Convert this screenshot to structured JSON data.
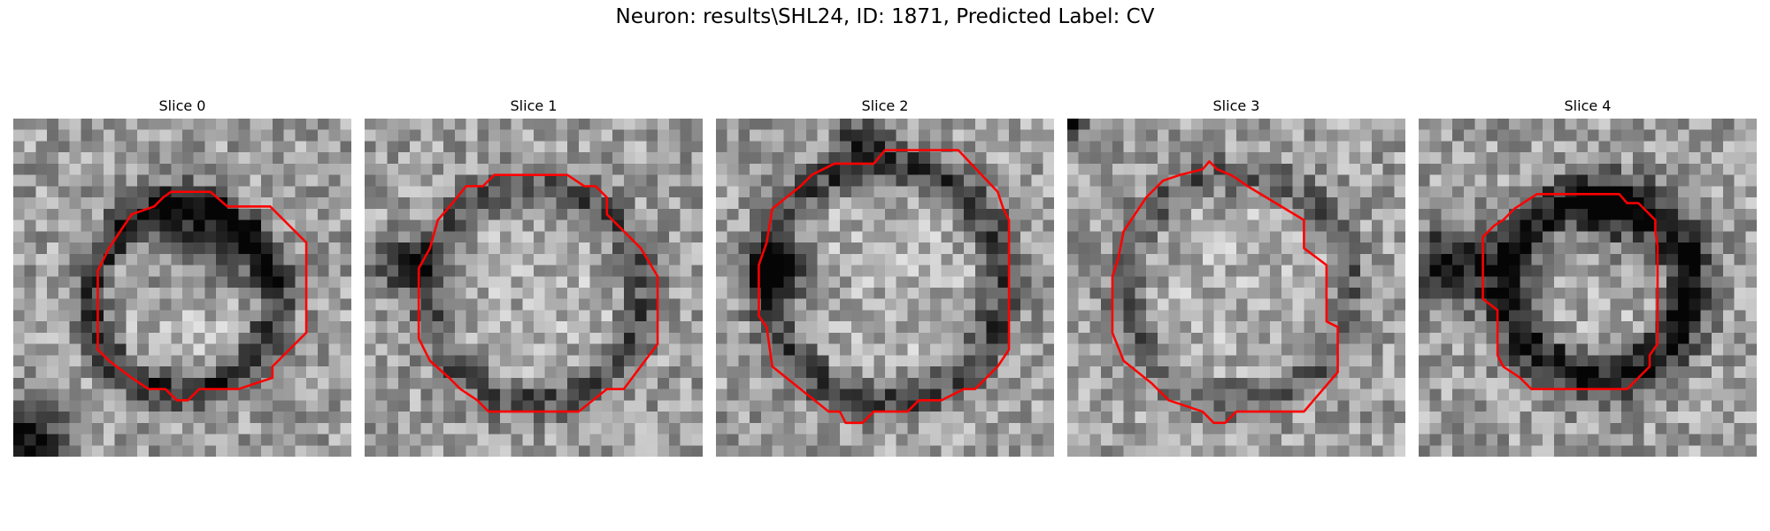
{
  "title": "Neuron: results\\SHL24, ID: 1871, Predicted Label: CV",
  "contour_color": "#ff0000",
  "slices": [
    {
      "label": "Slice 0",
      "image": "grayscale EM patch, dark ring around lighter center, dark blob bottom-left"
    },
    {
      "label": "Slice 1",
      "image": "grayscale EM patch, faint dark ring, dark spot on left"
    },
    {
      "label": "Slice 2",
      "image": "grayscale EM patch, dark ring, dark blob left and dark top"
    },
    {
      "label": "Slice 3",
      "image": "grayscale EM patch, noisy texture, ring faint"
    },
    {
      "label": "Slice 4",
      "image": "grayscale EM patch, strong dark ring, darker left side"
    }
  ]
}
